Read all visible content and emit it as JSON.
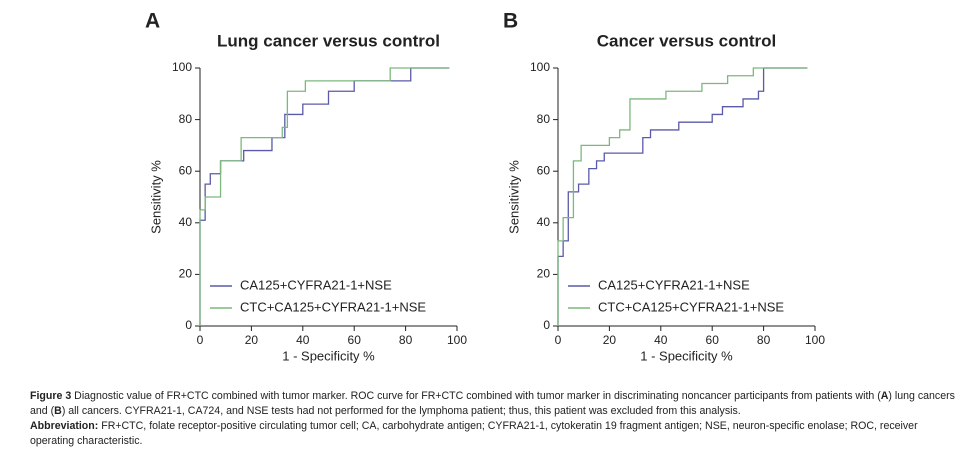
{
  "chart_data": [
    {
      "type": "line",
      "panel_label": "A",
      "title": "Lung cancer versus control",
      "xlabel": "1 - Specificity %",
      "ylabel": "Sensitivity %",
      "xlim": [
        0,
        100
      ],
      "ylim": [
        0,
        100
      ],
      "xticks": [
        0,
        20,
        40,
        60,
        80,
        100
      ],
      "yticks": [
        0,
        20,
        40,
        60,
        80,
        100
      ],
      "legend": "lower left",
      "series": [
        {
          "name": "CA125+CYFRA21-1+NSE",
          "color": "#5a5aa8",
          "x": [
            0,
            0,
            2,
            2,
            4,
            4,
            8,
            8,
            17,
            17,
            28,
            28,
            33,
            33,
            40,
            40,
            50,
            50,
            60,
            60,
            82,
            82,
            97
          ],
          "values": [
            0,
            41,
            41,
            55,
            55,
            59,
            59,
            64,
            64,
            68,
            68,
            73,
            73,
            82,
            82,
            86,
            86,
            91,
            91,
            95,
            95,
            100,
            100
          ]
        },
        {
          "name": "CTC+CA125+CYFRA21-1+NSE",
          "color": "#7cb87c",
          "x": [
            0,
            0,
            2,
            2,
            8,
            8,
            16,
            16,
            32,
            32,
            34,
            34,
            41,
            41,
            74,
            74,
            97
          ],
          "values": [
            0,
            45,
            45,
            50,
            50,
            64,
            64,
            73,
            73,
            77,
            77,
            91,
            91,
            95,
            95,
            100,
            100
          ]
        }
      ]
    },
    {
      "type": "line",
      "panel_label": "B",
      "title": "Cancer versus control",
      "xlabel": "1 - Specificity %",
      "ylabel": "Sensitivity %",
      "xlim": [
        0,
        100
      ],
      "ylim": [
        0,
        100
      ],
      "xticks": [
        0,
        20,
        40,
        60,
        80,
        100
      ],
      "yticks": [
        0,
        20,
        40,
        60,
        80,
        100
      ],
      "legend": "lower left",
      "series": [
        {
          "name": "CA125+CYFRA21-1+NSE",
          "color": "#5a5aa8",
          "x": [
            0,
            0,
            2,
            2,
            4,
            4,
            8,
            8,
            12,
            12,
            15,
            15,
            18,
            18,
            33,
            33,
            36,
            36,
            47,
            47,
            60,
            60,
            64,
            64,
            72,
            72,
            78,
            78,
            80,
            80,
            97
          ],
          "values": [
            0,
            27,
            27,
            33,
            33,
            52,
            52,
            55,
            55,
            61,
            61,
            64,
            64,
            67,
            67,
            73,
            73,
            76,
            76,
            79,
            79,
            82,
            82,
            85,
            85,
            88,
            88,
            91,
            91,
            100,
            100
          ]
        },
        {
          "name": "CTC+CA125+CYFRA21-1+NSE",
          "color": "#7cb87c",
          "x": [
            0,
            0,
            2,
            2,
            6,
            6,
            9,
            9,
            20,
            20,
            24,
            24,
            28,
            28,
            42,
            42,
            56,
            56,
            66,
            66,
            76,
            76,
            97
          ],
          "values": [
            0,
            33,
            33,
            42,
            42,
            64,
            64,
            70,
            70,
            73,
            73,
            76,
            76,
            88,
            88,
            91,
            91,
            94,
            94,
            97,
            97,
            100,
            100
          ]
        }
      ]
    }
  ],
  "caption": {
    "figure_label": "Figure 3",
    "text_1": " Diagnostic value of FR+CTC combined with tumor marker. ROC curve for FR+CTC combined with tumor marker in discriminating noncancer participants from patients with (",
    "panel_a": "A",
    "text_2": ") lung cancers and (",
    "panel_b": "B",
    "text_3": ") all cancers. CYFRA21-1, CA724, and NSE tests had not performed for the lymphoma patient; thus, this patient was excluded from this analysis.",
    "abbreviation_label": "Abbreviation:",
    "abbreviation_text": " FR+CTC, folate receptor-positive circulating tumor cell; CA, carbohydrate antigen; CYFRA21-1, cytokeratin 19 fragment antigen; NSE, neuron-specific enolase; ROC, receiver operating characteristic."
  }
}
